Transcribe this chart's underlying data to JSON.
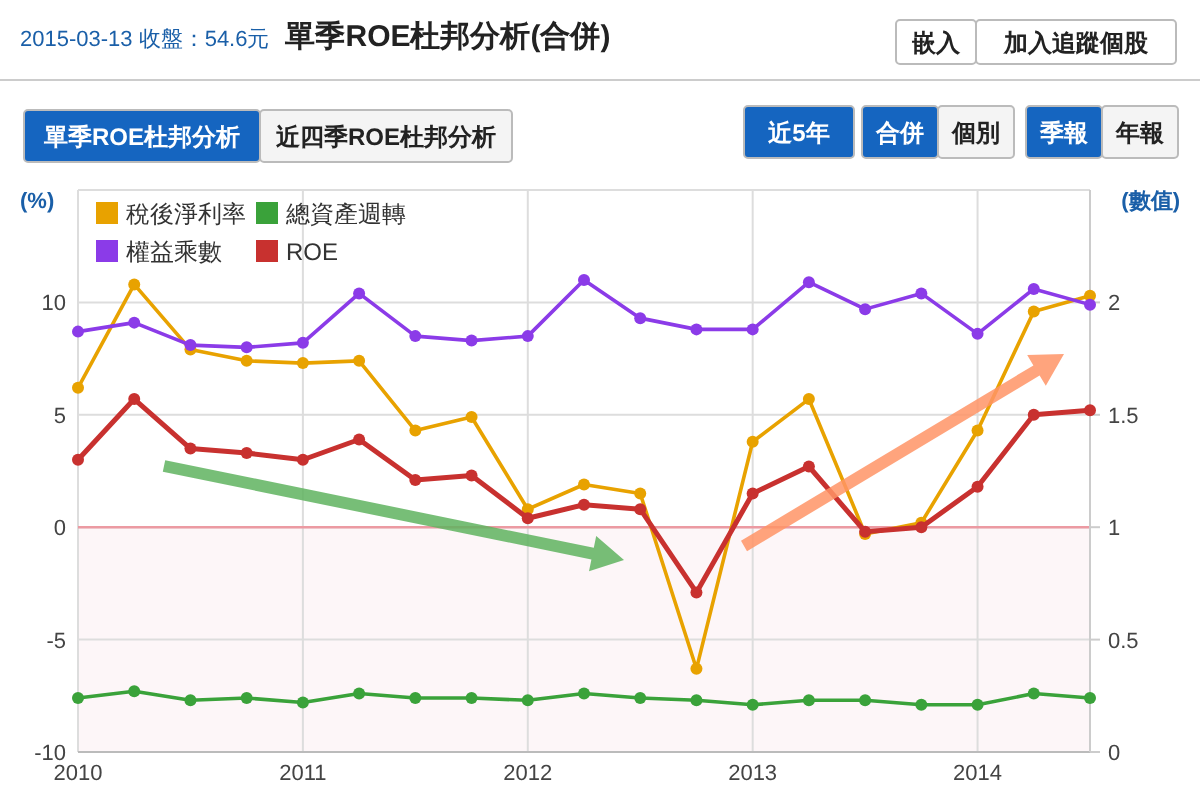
{
  "chart_data": {
    "type": "line",
    "title": "單季ROE杜邦分析(合併)",
    "subtitle": "2015-03-13 收盤：54.6元",
    "annotations": [
      "嵌入",
      "加入追蹤個股",
      "單季ROE杜邦分析",
      "近四季ROE杜邦分析",
      "近5年",
      "合併",
      "個別",
      "季報",
      "年報"
    ],
    "ylabel": "(%)",
    "y2label": "(數值)",
    "x": [
      2010,
      2010.25,
      2010.5,
      2010.75,
      2011,
      2011.25,
      2011.5,
      2011.75,
      2012,
      2012.25,
      2012.5,
      2012.75,
      2013,
      2013.25,
      2013.5,
      2013.75,
      2014,
      2014.25,
      2014.5
    ],
    "series": [
      {
        "name": "稅後淨利率",
        "color": "#e8a200",
        "values": [
          6.2,
          10.8,
          7.9,
          7.4,
          7.3,
          7.4,
          4.3,
          4.9,
          0.8,
          1.9,
          1.5,
          -6.3,
          3.8,
          5.7,
          -0.3,
          0.2,
          4.3,
          9.6,
          10.3
        ]
      },
      {
        "name": "總資產週轉",
        "color": "#3aa23a",
        "axis": "y2",
        "values": [
          0.24,
          0.27,
          0.23,
          0.24,
          0.22,
          0.26,
          0.24,
          0.24,
          0.23,
          0.26,
          0.24,
          0.23,
          0.21,
          0.23,
          0.23,
          0.21,
          0.21,
          0.26,
          0.24
        ]
      },
      {
        "name": "權益乘數",
        "color": "#8b3be8",
        "axis": "y2",
        "values": [
          1.87,
          1.91,
          1.81,
          1.8,
          1.82,
          2.04,
          1.85,
          1.83,
          1.85,
          2.1,
          1.93,
          1.88,
          1.88,
          2.09,
          1.97,
          2.04,
          1.86,
          2.06,
          1.99
        ]
      },
      {
        "name": "ROE",
        "color": "#c8312f",
        "values": [
          3.0,
          5.7,
          3.5,
          3.3,
          3.0,
          3.9,
          2.1,
          2.3,
          0.4,
          1.0,
          0.8,
          -2.9,
          1.5,
          2.7,
          -0.2,
          0.0,
          1.8,
          5.0,
          5.2
        ]
      }
    ],
    "xlim": [
      2010,
      2014.5
    ],
    "xticks": [
      2010,
      2011,
      2012,
      2013,
      2014
    ],
    "ylim": [
      -10,
      15
    ],
    "yticks": [
      -10,
      -5,
      0,
      5,
      10
    ],
    "y2lim": [
      0,
      2.5
    ],
    "y2ticks": [
      0,
      0.5,
      1,
      1.5,
      2
    ],
    "bands": [
      {
        "axis": "y",
        "from": -10,
        "to": 0,
        "color": "#fdf6f8"
      }
    ],
    "ref_lines": [
      {
        "axis": "y",
        "value": 0,
        "color": "#ec9aa2"
      }
    ],
    "grid": true,
    "legend": "top left",
    "marker": "circle",
    "line_style": "solid"
  }
}
